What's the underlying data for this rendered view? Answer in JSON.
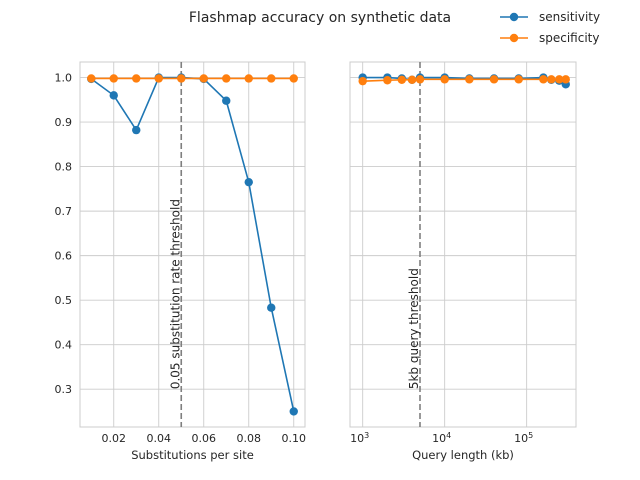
{
  "chart_data": {
    "title": "Flashmap accuracy on synthetic data",
    "legend": {
      "placement": "top-right",
      "entries": [
        {
          "name": "sensitivity",
          "color": "#1f77b4"
        },
        {
          "name": "specificity",
          "color": "#ff7f0e"
        }
      ]
    },
    "panels": [
      {
        "type": "line",
        "xscale": "linear",
        "xlabel": "Substitutions per site",
        "xlim": [
          0.005,
          0.105
        ],
        "ylim": [
          0.215,
          1.035
        ],
        "xticks": [
          0.02,
          0.04,
          0.06,
          0.08,
          0.1
        ],
        "xtick_labels": [
          "0.02",
          "0.04",
          "0.06",
          "0.08",
          "0.10"
        ],
        "yticks": [
          0.3,
          0.4,
          0.5,
          0.6,
          0.7,
          0.8,
          0.9,
          1.0
        ],
        "ytick_labels": [
          "0.3",
          "0.4",
          "0.5",
          "0.6",
          "0.7",
          "0.8",
          "0.9",
          "1.0"
        ],
        "show_yticklabels": true,
        "grid": true,
        "series": [
          {
            "name": "sensitivity",
            "color": "#1f77b4",
            "x": [
              0.01,
              0.02,
              0.03,
              0.04,
              0.05,
              0.06,
              0.07,
              0.08,
              0.09,
              0.1
            ],
            "y": [
              0.997,
              0.96,
              0.882,
              1.0,
              1.0,
              0.997,
              0.948,
              0.765,
              0.483,
              0.25
            ]
          },
          {
            "name": "specificity",
            "color": "#ff7f0e",
            "x": [
              0.01,
              0.02,
              0.03,
              0.04,
              0.05,
              0.06,
              0.07,
              0.08,
              0.09,
              0.1
            ],
            "y": [
              0.998,
              0.998,
              0.998,
              0.998,
              0.998,
              0.998,
              0.998,
              0.998,
              0.998,
              0.998
            ]
          }
        ],
        "vline": {
          "x": 0.05,
          "label": "0.05 substitution rate threshold",
          "color": "#7f7f7f"
        }
      },
      {
        "type": "line",
        "xscale": "log",
        "xlabel": "Query length (kb)",
        "xlim": [
          700,
          400000
        ],
        "ylim": [
          0.215,
          1.035
        ],
        "xticks": [
          1000,
          10000,
          100000
        ],
        "xtick_labels": [
          "10",
          "10",
          "10"
        ],
        "xtick_exponents": [
          "3",
          "4",
          "5"
        ],
        "yticks": [
          0.3,
          0.4,
          0.5,
          0.6,
          0.7,
          0.8,
          0.9,
          1.0
        ],
        "show_yticklabels": false,
        "grid": true,
        "series": [
          {
            "name": "sensitivity",
            "color": "#1f77b4",
            "x": [
              1000,
              2000,
              3000,
              4000,
              5000,
              10000,
              20000,
              40000,
              80000,
              160000,
              200000,
              250000,
              300000
            ],
            "y": [
              1.0,
              1.0,
              0.998,
              0.995,
              1.0,
              1.0,
              0.998,
              0.998,
              0.998,
              1.0,
              0.995,
              0.993,
              0.985
            ]
          },
          {
            "name": "specificity",
            "color": "#ff7f0e",
            "x": [
              1000,
              2000,
              3000,
              4000,
              5000,
              10000,
              20000,
              40000,
              80000,
              160000,
              200000,
              250000,
              300000
            ],
            "y": [
              0.992,
              0.994,
              0.995,
              0.995,
              0.996,
              0.996,
              0.996,
              0.996,
              0.996,
              0.996,
              0.996,
              0.996,
              0.996
            ]
          }
        ],
        "vline": {
          "x": 5000,
          "label": "5kb query threshold",
          "color": "#7f7f7f"
        }
      }
    ]
  }
}
